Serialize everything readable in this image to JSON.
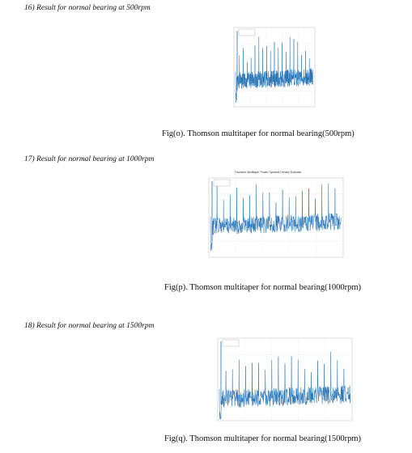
{
  "sections": [
    {
      "heading": "16)  Result for normal bearing at 500rpm",
      "caption": "Fig(o). Thomson multitaper for normal bearing(500rpm)"
    },
    {
      "heading": "17)  Result for normal bearing at 1000rpm",
      "figure_title": "Thomson Multitaper Power Spectral Density Estimate",
      "caption": "Fig(p). Thomson multitaper for normal bearing(1000rpm)"
    },
    {
      "heading": "18)  Result for normal bearing at 1500rpm",
      "caption": "Fig(q). Thomson multitaper for normal bearing(1500rpm)"
    }
  ]
}
